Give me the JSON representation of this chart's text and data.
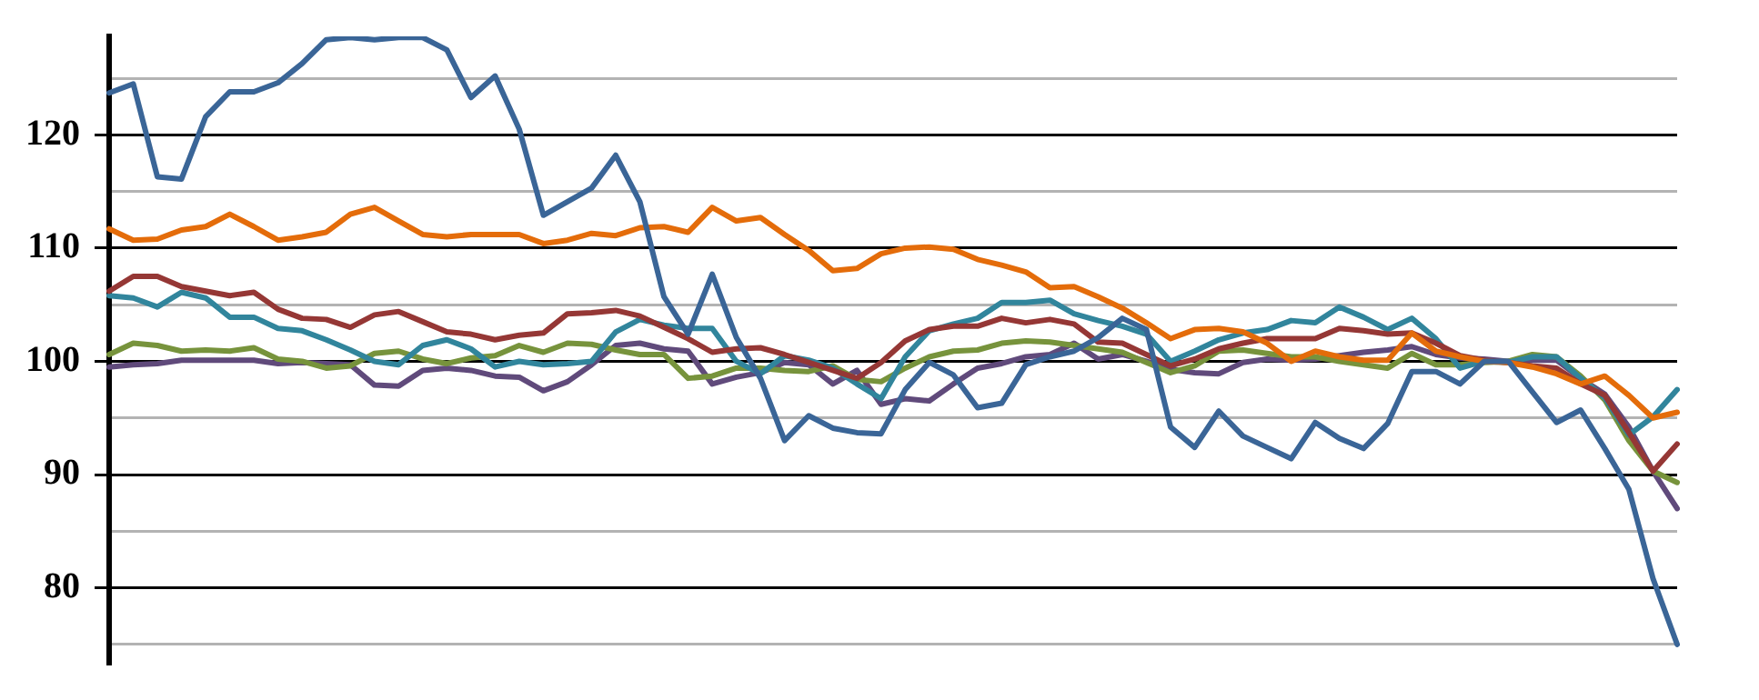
{
  "chart_data": {
    "type": "line",
    "categories": [
      null,
      null,
      null,
      null,
      null,
      null,
      null,
      null,
      null,
      null,
      null,
      null,
      null,
      null,
      null,
      null,
      null,
      null,
      null,
      null,
      null,
      null,
      null,
      null,
      null,
      null,
      null,
      null,
      null,
      null,
      null,
      null,
      null,
      null,
      null,
      null,
      null,
      null,
      null,
      null,
      null,
      null,
      null,
      null,
      null,
      null,
      null,
      null,
      null,
      null,
      null,
      null,
      null,
      null,
      null,
      null,
      null,
      null,
      null,
      null,
      null,
      null,
      null,
      null,
      null,
      null
    ],
    "series": [
      {
        "color": "#3a6597",
        "values": [
          123.7,
          124.5,
          116.3,
          116.1,
          121.6,
          123.8,
          123.8,
          124.6,
          126.3,
          128.4,
          128.6,
          128.4,
          128.6,
          128.6,
          127.5,
          123.3,
          125.2,
          120.5,
          112.9,
          114.1,
          115.3,
          118.2,
          114.1,
          105.7,
          102.4,
          107.7,
          102.1,
          98.5,
          93.0,
          95.2,
          94.1,
          93.7,
          93.6,
          97.5,
          99.9,
          98.8,
          95.9,
          96.3,
          99.7,
          100.4,
          100.9,
          102.1,
          103.8,
          102.8,
          94.2,
          92.4,
          95.6,
          93.4,
          92.4,
          91.4,
          94.6,
          93.2,
          92.3,
          94.5,
          99.1,
          99.1,
          98.0,
          100.0,
          100.0,
          97.3,
          94.6,
          95.7,
          92.3,
          88.7,
          80.8,
          75.0
        ]
      },
      {
        "color": "#e46c0a",
        "values": [
          111.7,
          110.7,
          110.8,
          111.6,
          111.9,
          113.0,
          111.9,
          110.7,
          111.0,
          111.4,
          113.0,
          113.6,
          112.4,
          111.2,
          111.0,
          111.2,
          111.2,
          111.2,
          110.4,
          110.7,
          111.3,
          111.1,
          111.8,
          111.9,
          111.4,
          113.6,
          112.4,
          112.7,
          111.2,
          109.8,
          108.0,
          108.2,
          109.5,
          110.0,
          110.1,
          109.9,
          109.0,
          108.5,
          107.9,
          106.5,
          106.6,
          105.7,
          104.7,
          103.4,
          102.0,
          102.8,
          102.9,
          102.6,
          101.6,
          100.0,
          100.9,
          100.4,
          100.1,
          100.1,
          102.5,
          100.9,
          100.4,
          100.0,
          99.9,
          99.5,
          98.9,
          98.0,
          98.7,
          97.0,
          95.0,
          95.5
        ]
      },
      {
        "color": "#953735",
        "values": [
          106.2,
          107.5,
          107.5,
          106.6,
          106.2,
          105.8,
          106.1,
          104.6,
          103.8,
          103.7,
          103.0,
          104.1,
          104.4,
          103.5,
          102.6,
          102.4,
          101.9,
          102.3,
          102.5,
          104.2,
          104.3,
          104.5,
          104.0,
          103.0,
          102.0,
          100.8,
          101.1,
          101.2,
          100.6,
          99.9,
          99.2,
          98.5,
          99.9,
          101.8,
          102.8,
          103.1,
          103.1,
          103.8,
          103.4,
          103.7,
          103.3,
          101.7,
          101.6,
          100.6,
          99.6,
          100.2,
          101.1,
          101.6,
          102.0,
          102.0,
          102.0,
          102.9,
          102.7,
          102.4,
          102.5,
          101.6,
          100.5,
          100.1,
          99.9,
          99.6,
          99.4,
          98.0,
          97.0,
          93.7,
          90.3,
          92.7
        ]
      },
      {
        "color": "#31859c",
        "values": [
          105.8,
          105.6,
          104.8,
          106.1,
          105.6,
          103.9,
          103.9,
          102.9,
          102.7,
          101.9,
          101.0,
          100.0,
          99.7,
          101.4,
          101.9,
          101.1,
          99.5,
          100.0,
          99.7,
          99.8,
          100.0,
          102.6,
          103.7,
          103.2,
          102.9,
          102.9,
          100.0,
          98.9,
          100.5,
          100.1,
          99.4,
          98.0,
          96.7,
          100.4,
          102.7,
          103.3,
          103.8,
          105.2,
          105.2,
          105.4,
          104.2,
          103.6,
          103.1,
          102.4,
          100.0,
          100.9,
          101.9,
          102.5,
          102.8,
          103.6,
          103.4,
          104.8,
          103.9,
          102.8,
          103.8,
          102.0,
          99.4,
          100.0,
          99.9,
          100.4,
          100.4,
          98.5,
          96.8,
          93.5,
          95.1,
          97.5
        ]
      },
      {
        "color": "#77933c",
        "values": [
          100.6,
          101.6,
          101.4,
          100.9,
          101.0,
          100.9,
          101.2,
          100.2,
          100.0,
          99.4,
          99.6,
          100.7,
          100.9,
          100.2,
          99.8,
          100.3,
          100.5,
          101.4,
          100.8,
          101.6,
          101.5,
          101.0,
          100.6,
          100.6,
          98.5,
          98.7,
          99.4,
          99.4,
          99.2,
          99.1,
          99.6,
          98.4,
          98.2,
          99.4,
          100.4,
          100.9,
          101.0,
          101.6,
          101.8,
          101.7,
          101.4,
          101.1,
          100.8,
          99.9,
          99.0,
          99.6,
          100.9,
          101.0,
          100.7,
          100.4,
          100.4,
          100.0,
          99.7,
          99.4,
          100.7,
          99.7,
          99.7,
          99.9,
          100.0,
          100.6,
          100.4,
          98.7,
          96.6,
          93.0,
          90.3,
          89.3
        ]
      },
      {
        "color": "#604a7b",
        "values": [
          99.5,
          99.7,
          99.8,
          100.1,
          100.1,
          100.1,
          100.1,
          99.8,
          99.9,
          99.8,
          99.7,
          97.9,
          97.8,
          99.2,
          99.4,
          99.2,
          98.7,
          98.6,
          97.4,
          98.2,
          99.7,
          101.4,
          101.6,
          101.1,
          100.9,
          98.0,
          98.6,
          99.0,
          99.9,
          99.7,
          98.0,
          99.2,
          96.2,
          96.7,
          96.5,
          98.0,
          99.4,
          99.8,
          100.4,
          100.6,
          101.6,
          100.2,
          100.6,
          100.0,
          99.3,
          99.0,
          98.9,
          99.9,
          100.2,
          100.1,
          100.2,
          100.5,
          100.8,
          101.0,
          101.3,
          100.6,
          100.3,
          100.2,
          100.0,
          100.1,
          100.1,
          98.5,
          97.1,
          94.2,
          90.3,
          87.0
        ]
      }
    ],
    "ylim": [
      73.3,
      128.7
    ],
    "yticks": [
      {
        "value": 75,
        "label": null
      },
      80,
      {
        "value": 85,
        "label": null
      },
      90,
      {
        "value": 95,
        "label": null
      },
      100,
      {
        "value": 105,
        "label": null
      },
      110,
      {
        "value": 115,
        "label": null
      },
      120,
      {
        "value": 125,
        "label": null
      }
    ],
    "grid": "y",
    "legend": false,
    "tick_labels": "y",
    "marker": "none",
    "line_style": "solid"
  }
}
